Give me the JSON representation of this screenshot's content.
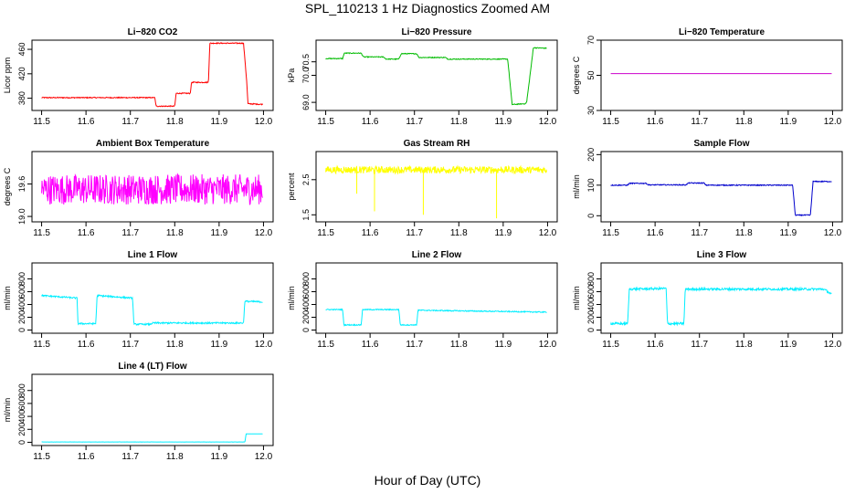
{
  "figure": {
    "title": "SPL_110213  1 Hz Diagnostics Zoomed AM",
    "xlabel": "Hour of Day (UTC)"
  },
  "chart_data": [
    {
      "type": "line",
      "title": "Li−820 CO2",
      "ylabel": "Licor ppm",
      "color": "#ff0000",
      "xlim": [
        11.5,
        12.0
      ],
      "ylim": [
        360,
        475
      ],
      "xticks": [
        "11.5",
        "11.6",
        "11.7",
        "11.8",
        "11.9",
        "12.0"
      ],
      "yticks": [
        {
          "v": 380,
          "label": "380"
        },
        {
          "v": 420,
          "label": "420"
        },
        {
          "v": 460,
          "label": "460"
        }
      ],
      "noise": 0.8,
      "series": [
        {
          "x": [
            11.5,
            11.755,
            11.758,
            11.8,
            11.803,
            11.835,
            11.838,
            11.876,
            11.879,
            11.955,
            11.962,
            11.965,
            11.998
          ],
          "y": [
            381,
            381,
            367,
            367,
            388,
            388,
            406,
            406,
            470,
            470,
            410,
            371,
            370
          ]
        }
      ]
    },
    {
      "type": "line",
      "title": "Li−820 Pressure",
      "ylabel": "kPa",
      "color": "#00bb00",
      "xlim": [
        11.5,
        12.0
      ],
      "ylim": [
        68.7,
        71.3
      ],
      "xticks": [
        "11.5",
        "11.6",
        "11.7",
        "11.8",
        "11.9",
        "12.0"
      ],
      "yticks": [
        {
          "v": 69.0,
          "label": "69.0"
        },
        {
          "v": 70.0,
          "label": "70.0"
        },
        {
          "v": 70.5,
          "label": "70.5"
        }
      ],
      "noise": 0.015,
      "series": [
        {
          "x": [
            11.5,
            11.538,
            11.542,
            11.58,
            11.585,
            11.63,
            11.636,
            11.665,
            11.67,
            11.705,
            11.71,
            11.77,
            11.775,
            11.91,
            11.915,
            11.92,
            11.95,
            11.953,
            11.962,
            11.968,
            11.998
          ],
          "y": [
            70.62,
            70.62,
            70.82,
            70.82,
            70.68,
            70.68,
            70.6,
            70.6,
            70.8,
            70.8,
            70.66,
            70.66,
            70.6,
            70.6,
            69.8,
            68.92,
            68.95,
            69.02,
            70.2,
            71.02,
            71.0
          ]
        }
      ]
    },
    {
      "type": "line",
      "title": "Li−820 Temperature",
      "ylabel": "degrees C",
      "color": "#cc00cc",
      "xlim": [
        11.5,
        12.0
      ],
      "ylim": [
        30,
        70
      ],
      "xticks": [
        "11.5",
        "11.6",
        "11.7",
        "11.8",
        "11.9",
        "12.0"
      ],
      "yticks": [
        {
          "v": 30,
          "label": "30"
        },
        {
          "v": 50,
          "label": "50"
        },
        {
          "v": 70,
          "label": "70"
        }
      ],
      "noise": 0,
      "series": [
        {
          "x": [
            11.5,
            11.998
          ],
          "y": [
            51,
            51
          ]
        }
      ]
    },
    {
      "type": "line",
      "title": "Ambient Box Temperature",
      "ylabel": "degrees C",
      "color": "#ff00ff",
      "xlim": [
        11.5,
        12.0
      ],
      "ylim": [
        18.9,
        20.2
      ],
      "xticks": [
        "11.5",
        "11.6",
        "11.7",
        "11.8",
        "11.9",
        "12.0"
      ],
      "yticks": [
        {
          "v": 19.0,
          "label": "19.0"
        },
        {
          "v": 19.6,
          "label": "19.6"
        }
      ],
      "noise": 0.28,
      "series": [
        {
          "x": [
            11.5,
            11.998
          ],
          "y": [
            19.5,
            19.5
          ]
        }
      ]
    },
    {
      "type": "line",
      "title": "Gas Stream RH",
      "ylabel": "percent",
      "color": "#ffff00",
      "xlim": [
        11.5,
        12.0
      ],
      "ylim": [
        1.3,
        3.3
      ],
      "xticks": [
        "11.5",
        "11.6",
        "11.7",
        "11.8",
        "11.9",
        "12.0"
      ],
      "yticks": [
        {
          "v": 1.5,
          "label": "1.5"
        },
        {
          "v": 2.5,
          "label": "2.5"
        }
      ],
      "noise": 0.1,
      "spikes": [
        {
          "x": 11.61,
          "y": 1.6
        },
        {
          "x": 11.72,
          "y": 1.5
        },
        {
          "x": 11.885,
          "y": 1.4
        },
        {
          "x": 11.57,
          "y": 2.1
        }
      ],
      "series": [
        {
          "x": [
            11.5,
            11.998
          ],
          "y": [
            2.78,
            2.78
          ]
        }
      ]
    },
    {
      "type": "line",
      "title": "Sample Flow",
      "ylabel": "ml/min",
      "color": "#0000cc",
      "xlim": [
        11.5,
        12.0
      ],
      "ylim": [
        -20,
        210
      ],
      "xticks": [
        "11.5",
        "11.6",
        "11.7",
        "11.8",
        "11.9",
        "12.0"
      ],
      "yticks": [
        {
          "v": 0,
          "label": "0"
        },
        {
          "v": 100,
          "label": "100"
        },
        {
          "v": 200,
          "label": "200"
        }
      ],
      "noise": 1.5,
      "series": [
        {
          "x": [
            11.5,
            11.538,
            11.542,
            11.58,
            11.585,
            11.67,
            11.675,
            11.71,
            11.715,
            11.91,
            11.916,
            11.95,
            11.956,
            11.998
          ],
          "y": [
            100,
            100,
            106,
            106,
            101,
            101,
            107,
            107,
            100,
            100,
            2,
            2,
            112,
            112
          ]
        }
      ]
    },
    {
      "type": "line",
      "title": "Line 1 Flow",
      "ylabel": "ml/min",
      "color": "#00eeff",
      "xlim": [
        11.5,
        12.0
      ],
      "ylim": [
        -50,
        1050
      ],
      "xticks": [
        "11.5",
        "11.6",
        "11.7",
        "11.8",
        "11.9",
        "12.0"
      ],
      "yticks": [
        {
          "v": 0,
          "label": "0"
        },
        {
          "v": 200,
          "label": "200"
        },
        {
          "v": 400,
          "label": "400"
        },
        {
          "v": 600,
          "label": "600"
        },
        {
          "v": 800,
          "label": "800"
        }
      ],
      "noise": 12,
      "series": [
        {
          "x": [
            11.5,
            11.58,
            11.582,
            11.622,
            11.625,
            11.705,
            11.708,
            11.745,
            11.75,
            11.955,
            11.958,
            11.998
          ],
          "y": [
            540,
            500,
            100,
            100,
            540,
            500,
            90,
            90,
            110,
            110,
            450,
            440
          ]
        }
      ]
    },
    {
      "type": "line",
      "title": "Line 2 Flow",
      "ylabel": "ml/min",
      "color": "#00eeff",
      "xlim": [
        11.5,
        12.0
      ],
      "ylim": [
        -50,
        1050
      ],
      "xticks": [
        "11.5",
        "11.6",
        "11.7",
        "11.8",
        "11.9",
        "12.0"
      ],
      "yticks": [
        {
          "v": 0,
          "label": "0"
        },
        {
          "v": 200,
          "label": "200"
        },
        {
          "v": 400,
          "label": "400"
        },
        {
          "v": 600,
          "label": "600"
        },
        {
          "v": 800,
          "label": "800"
        }
      ],
      "noise": 8,
      "series": [
        {
          "x": [
            11.5,
            11.538,
            11.541,
            11.58,
            11.583,
            11.665,
            11.668,
            11.705,
            11.708,
            11.998
          ],
          "y": [
            320,
            320,
            80,
            80,
            320,
            320,
            80,
            80,
            310,
            280
          ]
        }
      ]
    },
    {
      "type": "line",
      "title": "Line 3 Flow",
      "ylabel": "ml/min",
      "color": "#00eeff",
      "xlim": [
        11.5,
        12.0
      ],
      "ylim": [
        -50,
        1050
      ],
      "xticks": [
        "11.5",
        "11.6",
        "11.7",
        "11.8",
        "11.9",
        "12.0"
      ],
      "yticks": [
        {
          "v": 0,
          "label": "0"
        },
        {
          "v": 200,
          "label": "200"
        },
        {
          "v": 400,
          "label": "400"
        },
        {
          "v": 600,
          "label": "600"
        },
        {
          "v": 800,
          "label": "800"
        }
      ],
      "noise": 18,
      "series": [
        {
          "x": [
            11.5,
            11.538,
            11.542,
            11.625,
            11.628,
            11.665,
            11.668,
            11.98,
            11.998
          ],
          "y": [
            100,
            100,
            640,
            650,
            100,
            100,
            640,
            640,
            560
          ]
        }
      ]
    },
    {
      "type": "line",
      "title": "Line 4 (LT) Flow",
      "ylabel": "ml/min",
      "color": "#00eeff",
      "xlim": [
        11.5,
        12.0
      ],
      "ylim": [
        -50,
        1050
      ],
      "xticks": [
        "11.5",
        "11.6",
        "11.7",
        "11.8",
        "11.9",
        "12.0"
      ],
      "yticks": [
        {
          "v": 0,
          "label": "0"
        },
        {
          "v": 200,
          "label": "200"
        },
        {
          "v": 400,
          "label": "400"
        },
        {
          "v": 600,
          "label": "600"
        },
        {
          "v": 800,
          "label": "800"
        }
      ],
      "noise": 1,
      "series": [
        {
          "x": [
            11.5,
            11.958,
            11.961,
            11.998
          ],
          "y": [
            5,
            5,
            130,
            130
          ]
        }
      ]
    }
  ]
}
